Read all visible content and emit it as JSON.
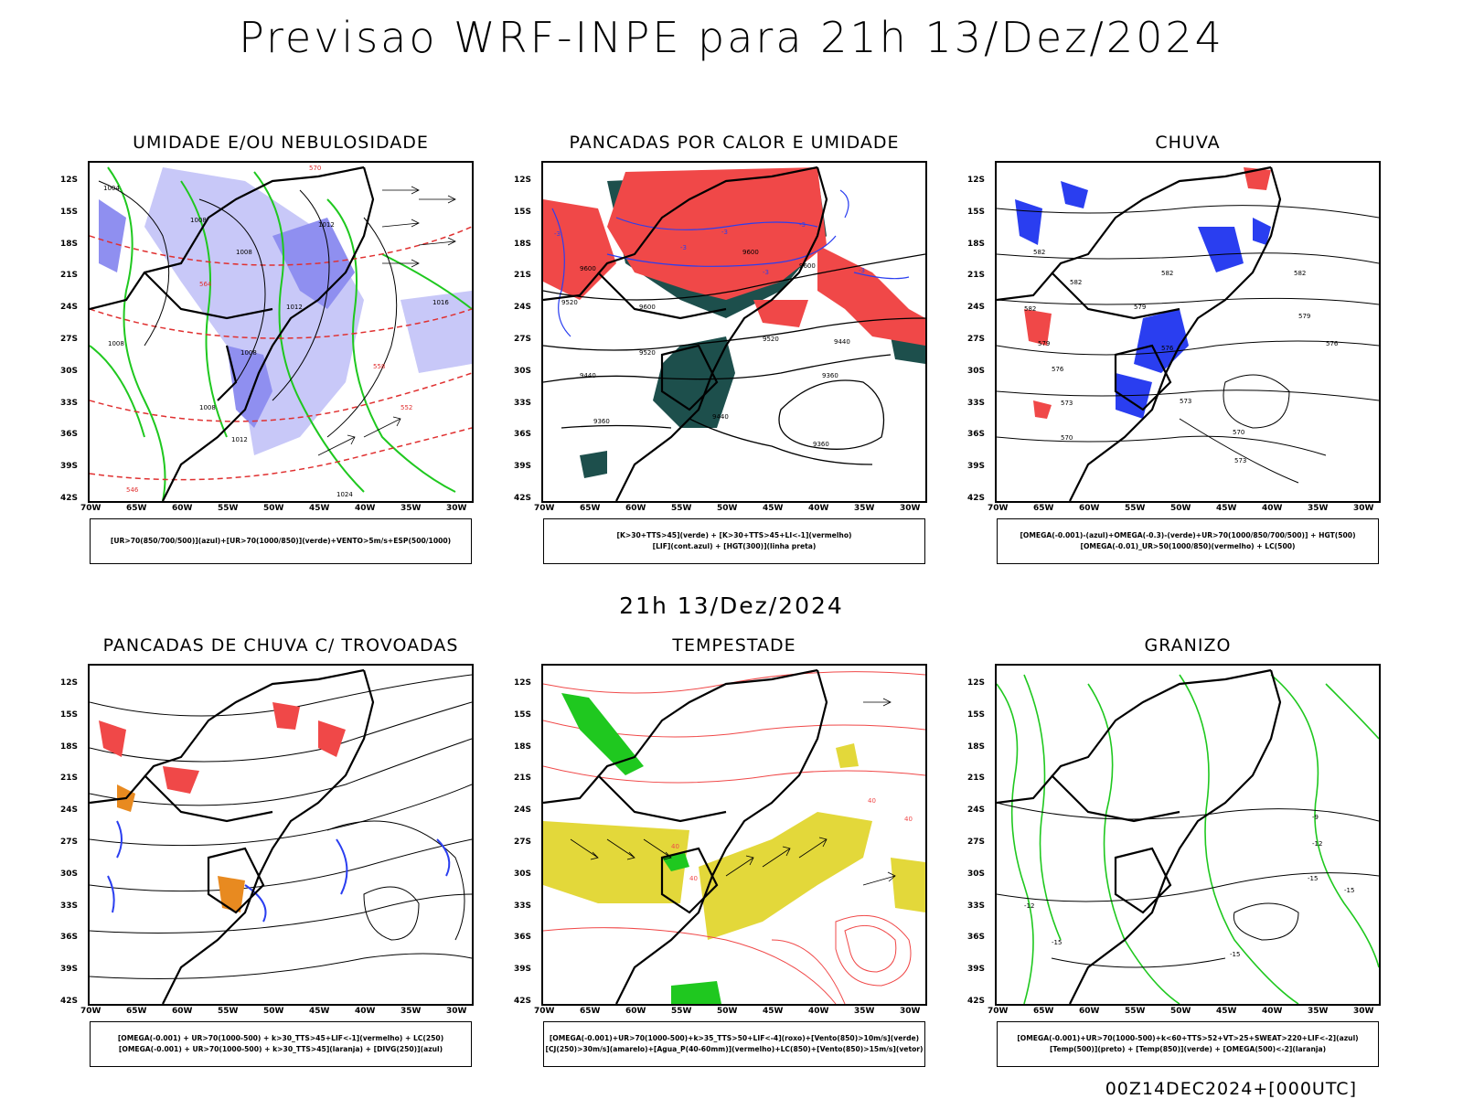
{
  "main_title": "Previsao WRF-INPE  para 21h 13/Dez/2024",
  "mid_title": "21h 13/Dez/2024",
  "footer_stamp": "00Z14DEC2024+[000UTC]",
  "lat_labels": [
    "12S",
    "15S",
    "18S",
    "21S",
    "24S",
    "27S",
    "30S",
    "33S",
    "36S",
    "39S",
    "42S"
  ],
  "lon_labels": [
    "70W",
    "65W",
    "60W",
    "55W",
    "50W",
    "45W",
    "40W",
    "35W",
    "30W"
  ],
  "colors": {
    "blue_region": "#8f8ff0",
    "blue_light": "#c8c8f8",
    "green_line": "#1fc81f",
    "red_fill": "#f04848",
    "teal_fill": "#1d4f4c",
    "yellow_fill": "#e3d83a",
    "blue_line": "#2a3ef0",
    "orange_fill": "#e88a20",
    "black_line": "#000000"
  },
  "panels": [
    {
      "id": "umidade",
      "title": "UMIDADE E/OU NEBULOSIDADE",
      "legend": [
        "[UR>70(850/700/500)](azul)+[UR>70(1000/850)](verde)+VENTO>5m/s+ESP(500/1000)"
      ],
      "contour_labels": [
        "1004",
        "1008",
        "1012",
        "1008",
        "1016",
        "1008",
        "1012",
        "1008",
        "1008",
        "1012",
        "1024",
        "570",
        "564",
        "558",
        "552",
        "546"
      ]
    },
    {
      "id": "pancadas-calor",
      "title": "PANCADAS POR CALOR E UMIDADE",
      "legend": [
        "[K>30+TTS>45](verde)  +  [K>30+TTS>45+LI<-1](vermelho)",
        "[LIF](cont.azul)  +  [HGT(300)](linha preta)"
      ],
      "contour_labels": [
        "9600",
        "9600",
        "9600",
        "9520",
        "9600",
        "9520",
        "9520",
        "9440",
        "9440",
        "9360",
        "9440",
        "9360",
        "9360",
        "-3",
        "-3",
        "-3",
        "-3",
        "-3",
        "-3"
      ]
    },
    {
      "id": "chuva",
      "title": "CHUVA",
      "legend": [
        "[OMEGA(-0.001)-(azul)+OMEGA(-0.3)-(verde)+UR>70(1000/850/700/500)]  +  HGT(500)",
        "[OMEGA(-0.01)_UR>50(1000/850)(vermelho)  +  LC(500)"
      ],
      "contour_labels": [
        "582",
        "582",
        "582",
        "582",
        "579",
        "579",
        "579",
        "576",
        "576",
        "573",
        "573",
        "570",
        "570",
        "573",
        "576",
        "582"
      ]
    },
    {
      "id": "pancadas-trovoadas",
      "title": "PANCADAS DE CHUVA C/ TROVOADAS",
      "legend": [
        "[OMEGA(-0.001)  +  UR>70(1000-500)  +  k>30_TTS>45+LIF<-1](vermelho)  +  LC(250)",
        "[OMEGA(-0.001)  +  UR>70(1000-500)  +  k>30_TTS>45](laranja)  +  [DIVG(250)](azul)"
      ]
    },
    {
      "id": "tempestade",
      "title": "TEMPESTADE",
      "legend": [
        "[OMEGA(-0.001)+UR>70(1000-500)+k>35_TTS>50+LIF<-4](roxo)+[Vento(850)>10m/s](verde)",
        "[CJ(250)>30m/s](amarelo)+[Agua_P(40-60mm)](vermelho)+LC(850)+[Vento(850)>15m/s](vetor)"
      ],
      "contour_labels": [
        "40",
        "40",
        "40",
        "40"
      ]
    },
    {
      "id": "granizo",
      "title": "GRANIZO",
      "legend": [
        "[OMEGA(-0.001)+UR>70(1000-500)+k<60+TTS>52+VT>25+SWEAT>220+LIF<-2](azul)",
        "[Temp(500)](preto)  +  [Temp(850)](verde)  +  [OMEGA(500)<-2](laranja)"
      ],
      "contour_labels": [
        "-9",
        "-12",
        "-12",
        "-15",
        "-15",
        "-15",
        "-15"
      ]
    }
  ]
}
